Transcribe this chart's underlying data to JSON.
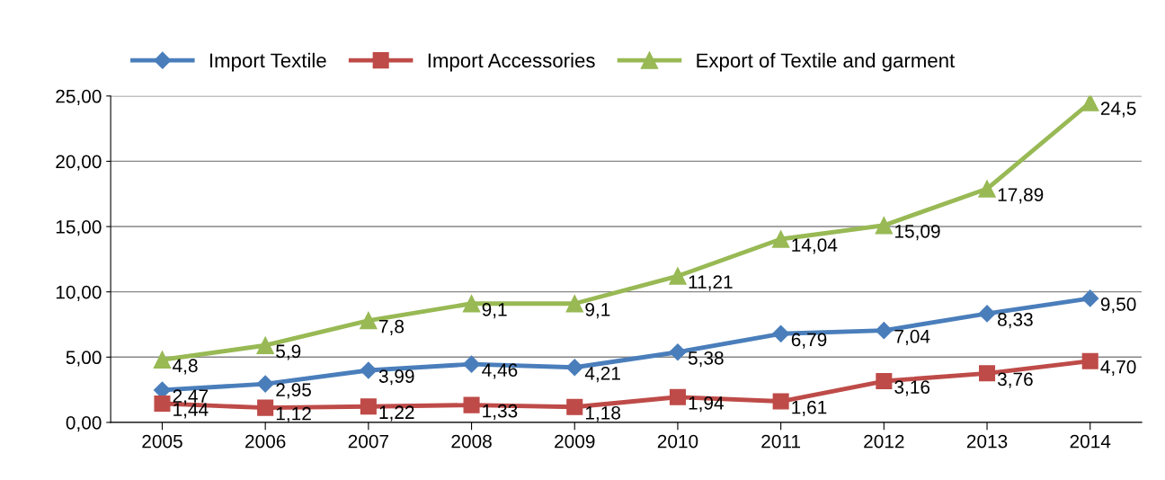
{
  "chart_data": {
    "type": "line",
    "categories": [
      "2005",
      "2006",
      "2007",
      "2008",
      "2009",
      "2010",
      "2011",
      "2012",
      "2013",
      "2014"
    ],
    "series": [
      {
        "name": "Import Textile",
        "color": "#4a7ebb",
        "marker": "diamond",
        "values": [
          2.47,
          2.95,
          3.99,
          4.46,
          4.21,
          5.38,
          6.79,
          7.04,
          8.33,
          9.5
        ],
        "value_labels": [
          "2,47",
          "2,95",
          "3,99",
          "4,46",
          "4,21",
          "5,38",
          "6,79",
          "7,04",
          "8,33",
          "9,50"
        ]
      },
      {
        "name": "Import Accessories",
        "color": "#be4b48",
        "marker": "square",
        "values": [
          1.44,
          1.12,
          1.22,
          1.33,
          1.18,
          1.94,
          1.61,
          3.16,
          3.76,
          4.7
        ],
        "value_labels": [
          "1,44",
          "1,12",
          "1,22",
          "1,33",
          "1,18",
          "1,94",
          "1,61",
          "3,16",
          "3,76",
          "4,70"
        ]
      },
      {
        "name": "Export of Textile and garment",
        "color": "#98b954",
        "marker": "triangle",
        "values": [
          4.8,
          5.9,
          7.8,
          9.1,
          9.1,
          11.21,
          14.04,
          15.09,
          17.89,
          24.5
        ],
        "value_labels": [
          "4,8",
          "5,9",
          "7,8",
          "9,1",
          "9,1",
          "11,21",
          "14,04",
          "15,09",
          "17,89",
          "24,5"
        ]
      }
    ],
    "ylim": [
      0,
      25
    ],
    "yticks": [
      {
        "value": 0,
        "label": "0,00"
      },
      {
        "value": 5,
        "label": "5,00"
      },
      {
        "value": 10,
        "label": "10,00"
      },
      {
        "value": 15,
        "label": "15,00"
      },
      {
        "value": 20,
        "label": "20,00"
      },
      {
        "value": 25,
        "label": "25,00"
      }
    ],
    "grid": "y",
    "legend": "top",
    "line_style": "solid"
  }
}
